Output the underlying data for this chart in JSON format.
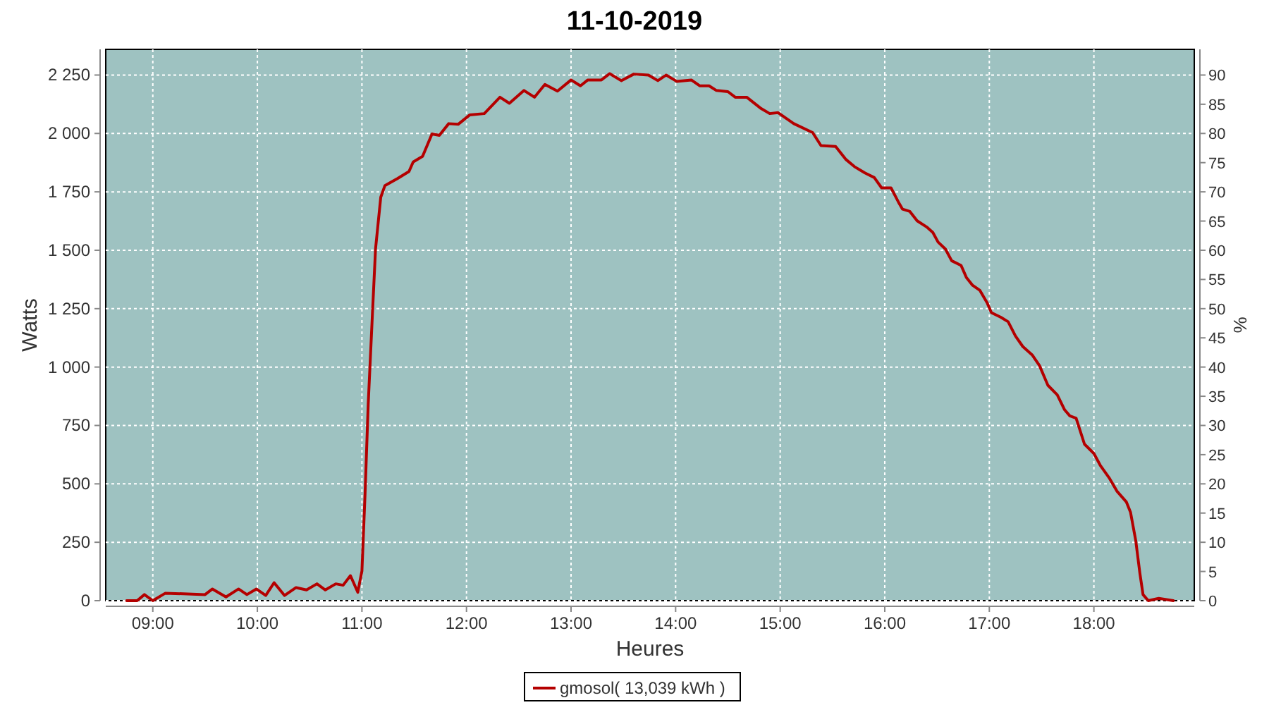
{
  "chart_data": {
    "type": "line",
    "title": "11-10-2019",
    "xlabel": "Heures",
    "ylabel": "Watts",
    "y2label": "%",
    "xlim": [
      8.55,
      18.96
    ],
    "xticks": [
      {
        "value": 9,
        "label": "09:00"
      },
      {
        "value": 10,
        "label": "10:00"
      },
      {
        "value": 11,
        "label": "11:00"
      },
      {
        "value": 12,
        "label": "12:00"
      },
      {
        "value": 13,
        "label": "13:00"
      },
      {
        "value": 14,
        "label": "14:00"
      },
      {
        "value": 15,
        "label": "15:00"
      },
      {
        "value": 16,
        "label": "16:00"
      },
      {
        "value": 17,
        "label": "17:00"
      },
      {
        "value": 18,
        "label": "18:00"
      }
    ],
    "ylim": [
      0,
      2360
    ],
    "yticks": [
      0,
      250,
      500,
      750,
      {
        "value": 1000,
        "label": "1 000"
      },
      {
        "value": 1250,
        "label": "1 250"
      },
      {
        "value": 1500,
        "label": "1 500"
      },
      {
        "value": 1750,
        "label": "1 750"
      },
      {
        "value": 2000,
        "label": "2 000"
      },
      {
        "value": 2250,
        "label": "2 250"
      }
    ],
    "y2lim": [
      0,
      94.4
    ],
    "y2ticks": [
      0,
      5,
      10,
      15,
      20,
      25,
      30,
      35,
      40,
      45,
      50,
      55,
      60,
      65,
      70,
      75,
      80,
      85,
      90
    ],
    "grid": true,
    "legend": "bottom",
    "series": [
      {
        "name": "gmosol( 13,039 kWh )",
        "color": "#b40000",
        "x": [
          8.75,
          8.85,
          8.92,
          9.0,
          9.12,
          9.5,
          9.57,
          9.7,
          9.82,
          9.9,
          9.99,
          10.08,
          10.16,
          10.26,
          10.37,
          10.47,
          10.57,
          10.65,
          10.75,
          10.82,
          10.89,
          10.92,
          10.96,
          11.0,
          11.03,
          11.06,
          11.1,
          11.13,
          11.18,
          11.22,
          11.34,
          11.45,
          11.49,
          11.58,
          11.67,
          11.74,
          11.83,
          11.92,
          12.03,
          12.17,
          12.32,
          12.41,
          12.55,
          12.65,
          12.75,
          12.87,
          13.0,
          13.09,
          13.16,
          13.29,
          13.37,
          13.48,
          13.6,
          13.74,
          13.83,
          13.91,
          14.01,
          14.15,
          14.23,
          14.32,
          14.39,
          14.5,
          14.57,
          14.68,
          14.81,
          14.9,
          14.98,
          15.13,
          15.31,
          15.39,
          15.53,
          15.63,
          15.71,
          15.81,
          15.9,
          15.97,
          16.06,
          16.13,
          16.17,
          16.24,
          16.31,
          16.4,
          16.46,
          16.51,
          16.58,
          16.64,
          16.73,
          16.78,
          16.84,
          16.91,
          16.98,
          17.02,
          17.11,
          17.18,
          17.25,
          17.32,
          17.41,
          17.48,
          17.56,
          17.65,
          17.72,
          17.77,
          17.83,
          17.91,
          18.0,
          18.06,
          18.15,
          18.22,
          18.31,
          18.35,
          18.4,
          18.44,
          18.47,
          18.52,
          18.62,
          18.76
        ],
        "values": [
          0,
          0,
          26,
          0,
          32,
          26,
          50,
          16,
          50,
          26,
          50,
          22,
          77,
          22,
          56,
          46,
          72,
          46,
          72,
          66,
          107,
          77,
          36,
          127,
          459,
          841,
          1224,
          1505,
          1727,
          1777,
          1807,
          1837,
          1878,
          1902,
          1998,
          1992,
          2042,
          2039,
          2079,
          2085,
          2155,
          2129,
          2184,
          2155,
          2210,
          2181,
          2229,
          2204,
          2229,
          2229,
          2256,
          2226,
          2254,
          2250,
          2226,
          2250,
          2223,
          2229,
          2204,
          2204,
          2184,
          2179,
          2155,
          2155,
          2109,
          2085,
          2089,
          2042,
          2004,
          1948,
          1944,
          1888,
          1858,
          1831,
          1811,
          1767,
          1767,
          1707,
          1676,
          1666,
          1626,
          1600,
          1576,
          1535,
          1505,
          1455,
          1435,
          1384,
          1350,
          1328,
          1274,
          1233,
          1213,
          1194,
          1133,
          1088,
          1052,
          1006,
          922,
          881,
          817,
          791,
          781,
          670,
          630,
          580,
          523,
          469,
          423,
          379,
          258,
          117,
          26,
          0,
          10,
          0
        ]
      }
    ]
  }
}
